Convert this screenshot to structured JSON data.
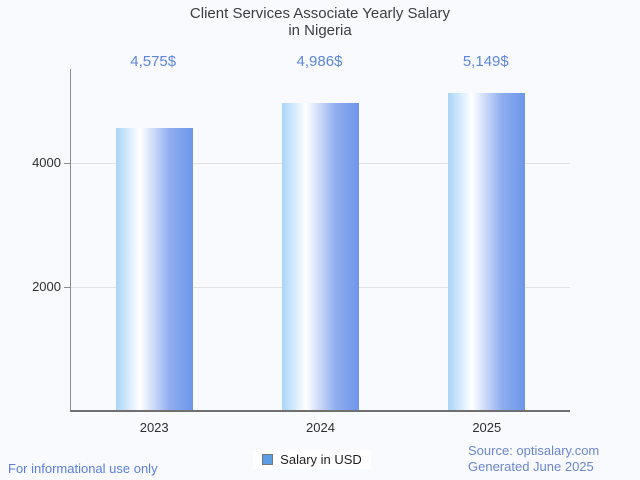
{
  "title": {
    "line1": "Client Services Associate Yearly Salary",
    "line2": "in Nigeria"
  },
  "chart_data": {
    "type": "bar",
    "title": "Client Services Associate Yearly Salary in Nigeria",
    "categories": [
      "2023",
      "2024",
      "2025"
    ],
    "series": [
      {
        "name": "Salary in USD",
        "values": [
          4575,
          4986,
          5149
        ]
      }
    ],
    "value_labels": [
      "4,575$",
      "4,986$",
      "5,149$"
    ],
    "xlabel": "",
    "ylabel": "",
    "ylim": [
      0,
      5530
    ],
    "yticks": [
      2000,
      4000
    ],
    "grid": true,
    "legend_position": "bottom",
    "bar_gradient": [
      "#a9d4f9",
      "#ffffff",
      "#6e96e9"
    ]
  },
  "legend": {
    "label": "Salary in USD",
    "marker_color": "#5c9ee5"
  },
  "footer": {
    "left": "For informational use only",
    "source": "Source: optisalary.com",
    "generated": "Generated June 2025"
  },
  "colors": {
    "value_label": "#5d85dc",
    "footer_left": "#5b7eda",
    "footer_right": "#6a87cd",
    "axis_line": "#6f6f6f",
    "gridline": "#e2e2e2",
    "background": "#f9fafd"
  }
}
